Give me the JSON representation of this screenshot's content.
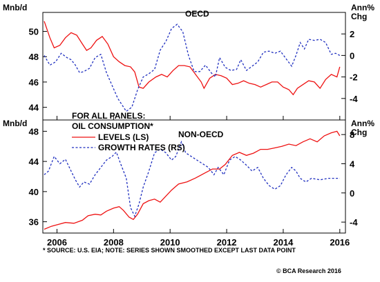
{
  "colors": {
    "levels": "#ee1111",
    "growth": "#1f2fbf",
    "axis": "#000000"
  },
  "x_ticks": [
    "2006",
    "2008",
    "2010",
    "2012",
    "2014",
    "2016"
  ],
  "legend": {
    "title_1": "FOR ALL PANELS:",
    "title_2": "OIL CONSUMPTION*",
    "levels": "LEVELS (LS)",
    "growth": "GROWTH RATES (RS)"
  },
  "footnote": "* SOURCE: U.S. EIA; NOTE: SERIES SHOWN SMOOTHED EXCEPT LAST DATA POINT",
  "credit": "© BCA Research 2016",
  "chart_data": [
    {
      "type": "line",
      "title": "OECD",
      "ylabel_left": "Mnb/d",
      "ylabel_right": "Ann% Chg",
      "xlim": [
        2005.5,
        2016.2
      ],
      "ylim_left": [
        43,
        51.5
      ],
      "ylim_right": [
        -6,
        4
      ],
      "yticks_left": [
        44,
        46,
        48,
        50
      ],
      "yticks_right": [
        -4,
        -2,
        0,
        2
      ],
      "series": [
        {
          "name": "LEVELS (LS)",
          "axis": "left",
          "style": "solid",
          "points": [
            [
              2005.55,
              50.8
            ],
            [
              2005.75,
              49.5
            ],
            [
              2005.9,
              48.7
            ],
            [
              2006.1,
              48.9
            ],
            [
              2006.3,
              49.5
            ],
            [
              2006.5,
              49.9
            ],
            [
              2006.7,
              49.7
            ],
            [
              2006.9,
              49.0
            ],
            [
              2007.05,
              48.5
            ],
            [
              2007.2,
              48.7
            ],
            [
              2007.4,
              49.3
            ],
            [
              2007.6,
              49.6
            ],
            [
              2007.8,
              49.0
            ],
            [
              2008.0,
              48.0
            ],
            [
              2008.2,
              47.6
            ],
            [
              2008.4,
              47.3
            ],
            [
              2008.6,
              47.2
            ],
            [
              2008.75,
              46.8
            ],
            [
              2008.9,
              45.6
            ],
            [
              2009.05,
              45.5
            ],
            [
              2009.25,
              46.0
            ],
            [
              2009.5,
              46.4
            ],
            [
              2009.7,
              46.6
            ],
            [
              2009.9,
              46.4
            ],
            [
              2010.1,
              46.9
            ],
            [
              2010.3,
              47.3
            ],
            [
              2010.5,
              47.3
            ],
            [
              2010.7,
              47.2
            ],
            [
              2010.9,
              46.6
            ],
            [
              2011.1,
              46.0
            ],
            [
              2011.2,
              45.5
            ],
            [
              2011.4,
              46.3
            ],
            [
              2011.6,
              46.6
            ],
            [
              2011.8,
              46.5
            ],
            [
              2012.0,
              46.3
            ],
            [
              2012.2,
              45.8
            ],
            [
              2012.4,
              45.9
            ],
            [
              2012.6,
              46.1
            ],
            [
              2012.8,
              45.9
            ],
            [
              2013.0,
              45.8
            ],
            [
              2013.2,
              45.6
            ],
            [
              2013.4,
              45.8
            ],
            [
              2013.6,
              46.0
            ],
            [
              2013.8,
              46.0
            ],
            [
              2014.0,
              45.6
            ],
            [
              2014.2,
              45.4
            ],
            [
              2014.35,
              45.0
            ],
            [
              2014.5,
              45.5
            ],
            [
              2014.7,
              45.8
            ],
            [
              2014.9,
              46.1
            ],
            [
              2015.1,
              46.0
            ],
            [
              2015.3,
              45.5
            ],
            [
              2015.5,
              46.2
            ],
            [
              2015.7,
              46.6
            ],
            [
              2015.9,
              46.4
            ],
            [
              2016.0,
              47.2
            ]
          ]
        },
        {
          "name": "GROWTH RATES (RS)",
          "axis": "right",
          "style": "dashed",
          "points": [
            [
              2005.55,
              0.0
            ],
            [
              2005.75,
              -0.9
            ],
            [
              2005.95,
              -0.6
            ],
            [
              2006.15,
              0.2
            ],
            [
              2006.35,
              -0.2
            ],
            [
              2006.5,
              -0.4
            ],
            [
              2006.65,
              -0.9
            ],
            [
              2006.8,
              -1.6
            ],
            [
              2006.95,
              -1.5
            ],
            [
              2007.15,
              -1.2
            ],
            [
              2007.35,
              -0.2
            ],
            [
              2007.55,
              0.1
            ],
            [
              2007.75,
              -1.6
            ],
            [
              2007.95,
              -2.8
            ],
            [
              2008.15,
              -4.0
            ],
            [
              2008.35,
              -4.8
            ],
            [
              2008.45,
              -5.2
            ],
            [
              2008.65,
              -4.8
            ],
            [
              2008.85,
              -3.2
            ],
            [
              2009.05,
              -2.0
            ],
            [
              2009.25,
              -1.7
            ],
            [
              2009.45,
              -1.3
            ],
            [
              2009.65,
              0.5
            ],
            [
              2009.85,
              1.3
            ],
            [
              2010.05,
              2.5
            ],
            [
              2010.25,
              2.9
            ],
            [
              2010.45,
              2.2
            ],
            [
              2010.65,
              0.0
            ],
            [
              2010.85,
              -1.5
            ],
            [
              2011.05,
              -1.5
            ],
            [
              2011.25,
              -0.9
            ],
            [
              2011.45,
              -1.6
            ],
            [
              2011.6,
              -2.0
            ],
            [
              2011.75,
              -0.2
            ],
            [
              2011.95,
              -1.1
            ],
            [
              2012.15,
              -1.4
            ],
            [
              2012.35,
              -1.3
            ],
            [
              2012.5,
              -0.4
            ],
            [
              2012.7,
              -1.4
            ],
            [
              2012.9,
              -1.0
            ],
            [
              2013.1,
              -0.6
            ],
            [
              2013.3,
              0.3
            ],
            [
              2013.5,
              0.4
            ],
            [
              2013.7,
              0.2
            ],
            [
              2013.9,
              0.4
            ],
            [
              2014.1,
              -0.3
            ],
            [
              2014.3,
              -1.0
            ],
            [
              2014.45,
              0.0
            ],
            [
              2014.6,
              1.2
            ],
            [
              2014.75,
              0.6
            ],
            [
              2014.9,
              1.5
            ],
            [
              2015.1,
              1.4
            ],
            [
              2015.3,
              1.5
            ],
            [
              2015.5,
              1.2
            ],
            [
              2015.7,
              0.1
            ],
            [
              2015.85,
              0.2
            ],
            [
              2016.0,
              0.0
            ]
          ]
        }
      ]
    },
    {
      "type": "line",
      "title": "NON-OECD",
      "ylabel_left": "Mnb/d",
      "ylabel_right": "Ann% Chg",
      "xlim": [
        2005.5,
        2016.2
      ],
      "ylim_left": [
        34.5,
        49.5
      ],
      "ylim_right": [
        -5.5,
        10
      ],
      "yticks_left": [
        36,
        40,
        44,
        48
      ],
      "yticks_right": [
        -4,
        0,
        4,
        8
      ],
      "series": [
        {
          "name": "LEVELS (LS)",
          "axis": "left",
          "style": "solid",
          "points": [
            [
              2005.55,
              35.0
            ],
            [
              2005.8,
              35.4
            ],
            [
              2006.0,
              35.6
            ],
            [
              2006.3,
              35.9
            ],
            [
              2006.6,
              35.8
            ],
            [
              2006.9,
              36.2
            ],
            [
              2007.1,
              36.8
            ],
            [
              2007.35,
              37.0
            ],
            [
              2007.55,
              36.9
            ],
            [
              2007.75,
              37.4
            ],
            [
              2008.0,
              37.8
            ],
            [
              2008.2,
              38.0
            ],
            [
              2008.35,
              37.5
            ],
            [
              2008.55,
              36.6
            ],
            [
              2008.7,
              36.3
            ],
            [
              2008.85,
              37.0
            ],
            [
              2009.05,
              38.4
            ],
            [
              2009.25,
              38.8
            ],
            [
              2009.45,
              39.0
            ],
            [
              2009.65,
              38.6
            ],
            [
              2009.85,
              39.4
            ],
            [
              2010.05,
              40.2
            ],
            [
              2010.3,
              41.0
            ],
            [
              2010.6,
              41.3
            ],
            [
              2010.9,
              41.8
            ],
            [
              2011.2,
              42.4
            ],
            [
              2011.5,
              43.0
            ],
            [
              2011.75,
              43.0
            ],
            [
              2011.95,
              43.6
            ],
            [
              2012.2,
              44.8
            ],
            [
              2012.45,
              45.2
            ],
            [
              2012.7,
              44.8
            ],
            [
              2012.95,
              45.1
            ],
            [
              2013.2,
              45.6
            ],
            [
              2013.45,
              45.6
            ],
            [
              2013.7,
              45.8
            ],
            [
              2013.95,
              46.0
            ],
            [
              2014.2,
              46.3
            ],
            [
              2014.45,
              46.1
            ],
            [
              2014.7,
              46.6
            ],
            [
              2014.95,
              47.0
            ],
            [
              2015.2,
              46.6
            ],
            [
              2015.45,
              47.4
            ],
            [
              2015.7,
              47.8
            ],
            [
              2015.9,
              48.0
            ],
            [
              2016.0,
              47.4
            ]
          ]
        },
        {
          "name": "GROWTH RATES (RS)",
          "axis": "right",
          "style": "dashed",
          "points": [
            [
              2005.55,
              2.5
            ],
            [
              2005.7,
              3.0
            ],
            [
              2005.9,
              5.0
            ],
            [
              2006.1,
              4.0
            ],
            [
              2006.3,
              4.6
            ],
            [
              2006.5,
              3.0
            ],
            [
              2006.65,
              1.8
            ],
            [
              2006.8,
              0.8
            ],
            [
              2006.95,
              1.5
            ],
            [
              2007.15,
              1.2
            ],
            [
              2007.35,
              2.5
            ],
            [
              2007.55,
              3.5
            ],
            [
              2007.75,
              4.5
            ],
            [
              2007.95,
              5.0
            ],
            [
              2008.1,
              5.6
            ],
            [
              2008.25,
              4.0
            ],
            [
              2008.45,
              2.0
            ],
            [
              2008.6,
              -2.0
            ],
            [
              2008.75,
              -3.2
            ],
            [
              2008.9,
              -1.5
            ],
            [
              2009.05,
              0.8
            ],
            [
              2009.25,
              3.0
            ],
            [
              2009.45,
              5.5
            ],
            [
              2009.65,
              6.0
            ],
            [
              2009.85,
              5.5
            ],
            [
              2010.05,
              4.5
            ],
            [
              2010.2,
              5.0
            ],
            [
              2010.4,
              7.0
            ],
            [
              2010.55,
              5.5
            ],
            [
              2010.75,
              5.0
            ],
            [
              2010.95,
              4.5
            ],
            [
              2011.15,
              4.0
            ],
            [
              2011.35,
              3.5
            ],
            [
              2011.55,
              2.5
            ],
            [
              2011.7,
              3.5
            ],
            [
              2011.9,
              2.5
            ],
            [
              2012.1,
              4.5
            ],
            [
              2012.3,
              5.0
            ],
            [
              2012.5,
              4.5
            ],
            [
              2012.7,
              3.8
            ],
            [
              2012.9,
              3.0
            ],
            [
              2013.1,
              3.5
            ],
            [
              2013.3,
              2.0
            ],
            [
              2013.5,
              1.0
            ],
            [
              2013.7,
              0.5
            ],
            [
              2013.9,
              1.0
            ],
            [
              2014.1,
              2.5
            ],
            [
              2014.3,
              3.5
            ],
            [
              2014.45,
              3.0
            ],
            [
              2014.6,
              2.0
            ],
            [
              2014.8,
              1.5
            ],
            [
              2015.0,
              2.0
            ],
            [
              2015.3,
              1.8
            ],
            [
              2015.6,
              2.0
            ],
            [
              2016.0,
              2.0
            ]
          ]
        }
      ]
    }
  ]
}
